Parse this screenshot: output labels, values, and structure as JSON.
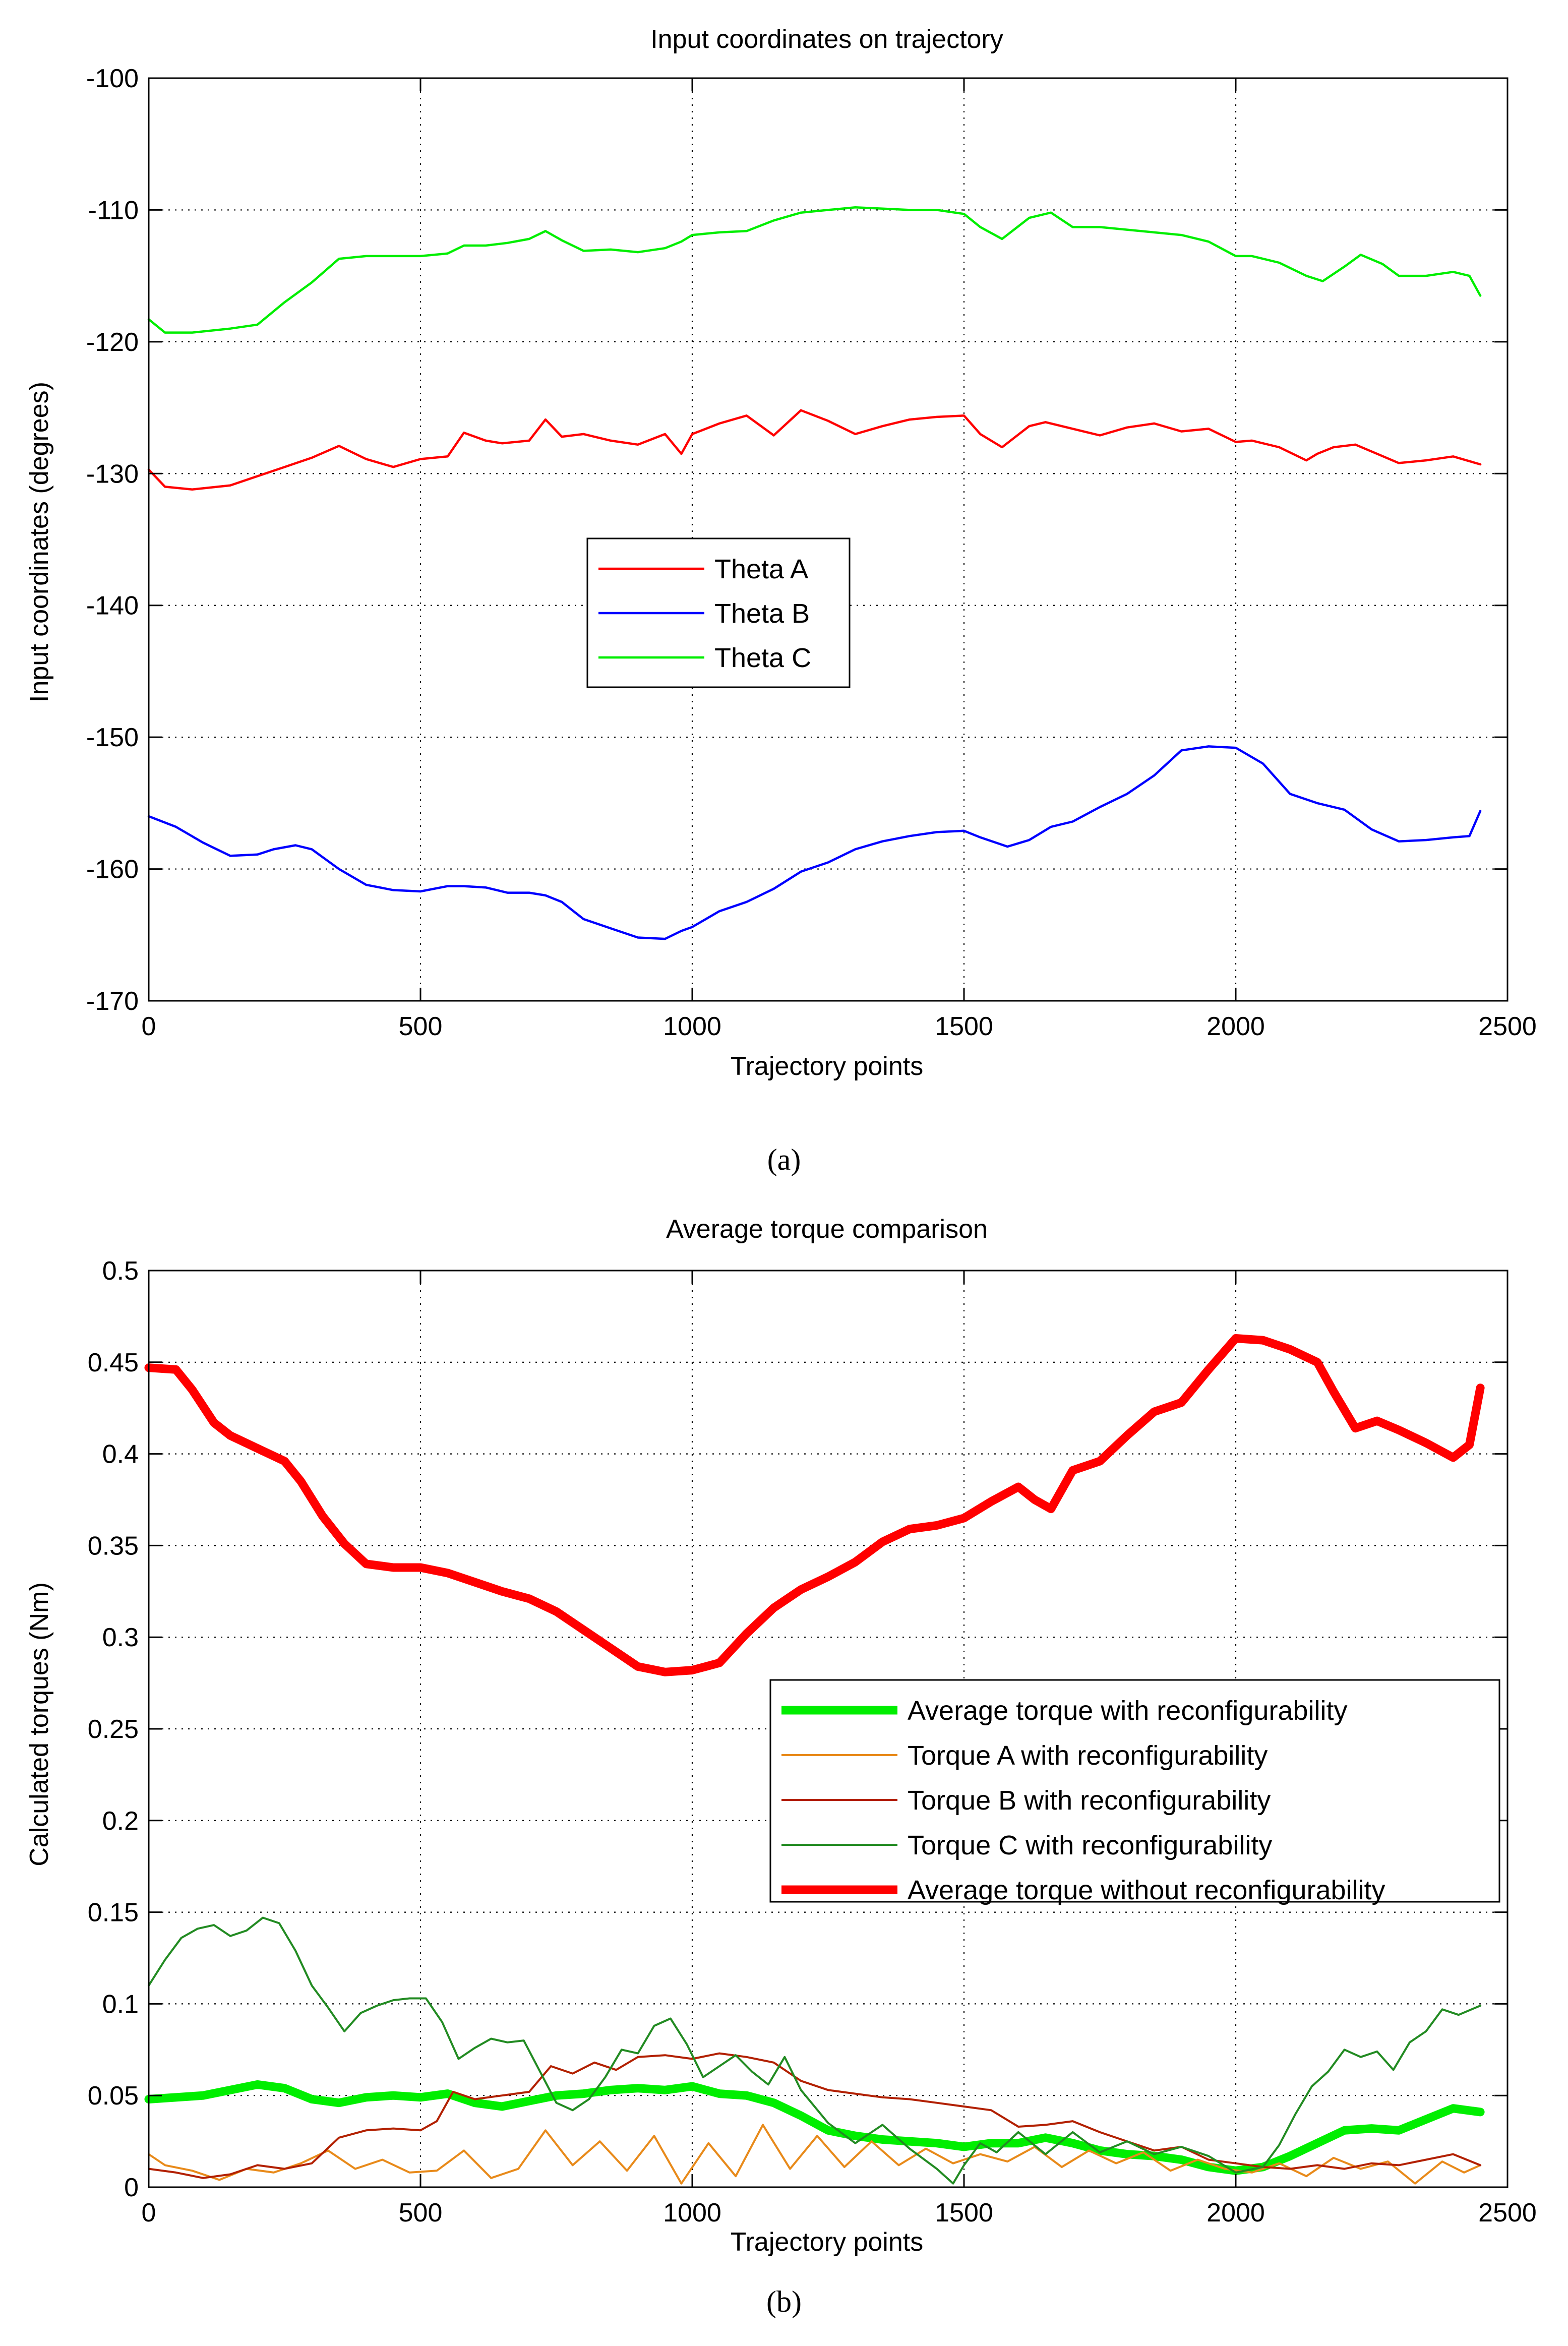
{
  "figure": {
    "label_a": "(a)",
    "label_b": "(b)"
  },
  "chart_data": [
    {
      "type": "line",
      "title": "Input coordinates on trajectory",
      "xlabel": "Trajectory points",
      "ylabel": "Input coordinates (degrees)",
      "xlim": [
        0,
        2500
      ],
      "ylim": [
        -170,
        -100
      ],
      "xticks": [
        0,
        500,
        1000,
        1500,
        2000,
        2500
      ],
      "yticks": [
        -170,
        -160,
        -150,
        -140,
        -130,
        -120,
        -110,
        -100
      ],
      "grid": true,
      "legend_position": "center",
      "series": [
        {
          "name": "Theta A",
          "color": "#ff0000",
          "width": "normal",
          "x": [
            0,
            30,
            80,
            150,
            200,
            250,
            300,
            350,
            400,
            450,
            500,
            550,
            580,
            620,
            650,
            700,
            730,
            760,
            800,
            850,
            900,
            950,
            980,
            1000,
            1050,
            1100,
            1150,
            1200,
            1250,
            1300,
            1350,
            1400,
            1450,
            1500,
            1530,
            1570,
            1620,
            1650,
            1700,
            1750,
            1800,
            1850,
            1900,
            1950,
            2000,
            2030,
            2080,
            2130,
            2150,
            2180,
            2220,
            2260,
            2300,
            2350,
            2400,
            2450
          ],
          "y": [
            -129.7,
            -131.0,
            -131.2,
            -130.9,
            -130.2,
            -129.5,
            -128.8,
            -127.9,
            -128.9,
            -129.5,
            -128.9,
            -128.7,
            -126.9,
            -127.5,
            -127.7,
            -127.5,
            -125.9,
            -127.2,
            -127.0,
            -127.5,
            -127.8,
            -127.0,
            -128.5,
            -127.0,
            -126.2,
            -125.6,
            -127.1,
            -125.2,
            -126.0,
            -127.0,
            -126.4,
            -125.9,
            -125.7,
            -125.6,
            -127.0,
            -128.0,
            -126.4,
            -126.1,
            -126.6,
            -127.1,
            -126.5,
            -126.2,
            -126.8,
            -126.6,
            -127.6,
            -127.5,
            -128.0,
            -129.0,
            -128.5,
            -128.0,
            -127.8,
            -128.5,
            -129.2,
            -129.0,
            -128.7,
            -129.3
          ]
        },
        {
          "name": "Theta B",
          "color": "#0000ff",
          "width": "normal",
          "x": [
            0,
            50,
            100,
            150,
            200,
            230,
            270,
            300,
            350,
            400,
            450,
            500,
            550,
            580,
            620,
            660,
            700,
            730,
            760,
            800,
            850,
            900,
            950,
            980,
            1000,
            1050,
            1100,
            1150,
            1200,
            1250,
            1300,
            1350,
            1400,
            1450,
            1500,
            1530,
            1580,
            1620,
            1660,
            1700,
            1750,
            1800,
            1850,
            1900,
            1950,
            2000,
            2050,
            2100,
            2150,
            2200,
            2250,
            2300,
            2350,
            2400,
            2430,
            2450
          ],
          "y": [
            -156.0,
            -156.8,
            -158.0,
            -159.0,
            -158.9,
            -158.5,
            -158.2,
            -158.5,
            -160.0,
            -161.2,
            -161.6,
            -161.7,
            -161.3,
            -161.3,
            -161.4,
            -161.8,
            -161.8,
            -162.0,
            -162.5,
            -163.8,
            -164.5,
            -165.2,
            -165.3,
            -164.7,
            -164.4,
            -163.2,
            -162.5,
            -161.5,
            -160.2,
            -159.5,
            -158.5,
            -157.9,
            -157.5,
            -157.2,
            -157.1,
            -157.6,
            -158.3,
            -157.8,
            -156.8,
            -156.4,
            -155.3,
            -154.3,
            -152.9,
            -151.0,
            -150.7,
            -150.8,
            -152.0,
            -154.3,
            -155.0,
            -155.5,
            -157.0,
            -157.9,
            -157.8,
            -157.6,
            -157.5,
            -155.6
          ]
        },
        {
          "name": "Theta C",
          "color": "#00ee00",
          "width": "normal",
          "x": [
            0,
            30,
            80,
            150,
            200,
            250,
            300,
            350,
            400,
            450,
            500,
            550,
            580,
            620,
            660,
            700,
            730,
            760,
            800,
            850,
            900,
            950,
            980,
            1000,
            1050,
            1100,
            1150,
            1200,
            1250,
            1300,
            1350,
            1400,
            1450,
            1500,
            1530,
            1570,
            1620,
            1660,
            1700,
            1750,
            1800,
            1850,
            1900,
            1950,
            2000,
            2030,
            2080,
            2130,
            2160,
            2200,
            2230,
            2270,
            2300,
            2350,
            2400,
            2430,
            2450
          ],
          "y": [
            -118.3,
            -119.3,
            -119.3,
            -119.0,
            -118.7,
            -117.0,
            -115.5,
            -113.7,
            -113.5,
            -113.5,
            -113.5,
            -113.3,
            -112.7,
            -112.7,
            -112.5,
            -112.2,
            -111.6,
            -112.3,
            -113.1,
            -113.0,
            -113.2,
            -112.9,
            -112.4,
            -111.9,
            -111.7,
            -111.6,
            -110.8,
            -110.2,
            -110.0,
            -109.8,
            -109.9,
            -110.0,
            -110.0,
            -110.3,
            -111.3,
            -112.2,
            -110.6,
            -110.2,
            -111.3,
            -111.3,
            -111.5,
            -111.7,
            -111.9,
            -112.4,
            -113.5,
            -113.5,
            -114.0,
            -115.0,
            -115.4,
            -114.3,
            -113.4,
            -114.1,
            -115.0,
            -115.0,
            -114.7,
            -115.0,
            -116.5
          ]
        }
      ]
    },
    {
      "type": "line",
      "title": "Average torque comparison",
      "xlabel": "Trajectory points",
      "ylabel": "Calculated torques (Nm)",
      "xlim": [
        0,
        2500
      ],
      "ylim": [
        0,
        0.5
      ],
      "xticks": [
        0,
        500,
        1000,
        1500,
        2000,
        2500
      ],
      "yticks": [
        0,
        0.05,
        0.1,
        0.15,
        0.2,
        0.25,
        0.3,
        0.35,
        0.4,
        0.45,
        0.5
      ],
      "grid": true,
      "legend_position": "right",
      "series": [
        {
          "name": "Average torque with reconfigurability",
          "color": "#00ee00",
          "width": "thick",
          "x": [
            0,
            100,
            150,
            200,
            250,
            300,
            350,
            400,
            450,
            500,
            550,
            600,
            650,
            700,
            750,
            800,
            850,
            900,
            950,
            1000,
            1050,
            1100,
            1150,
            1200,
            1250,
            1300,
            1350,
            1400,
            1450,
            1500,
            1550,
            1600,
            1650,
            1700,
            1750,
            1800,
            1850,
            1900,
            1950,
            2000,
            2050,
            2100,
            2150,
            2200,
            2250,
            2300,
            2350,
            2400,
            2450
          ],
          "y": [
            0.048,
            0.05,
            0.053,
            0.056,
            0.054,
            0.048,
            0.046,
            0.049,
            0.05,
            0.049,
            0.051,
            0.046,
            0.044,
            0.047,
            0.05,
            0.051,
            0.053,
            0.054,
            0.053,
            0.055,
            0.051,
            0.05,
            0.046,
            0.039,
            0.031,
            0.028,
            0.026,
            0.025,
            0.024,
            0.022,
            0.024,
            0.024,
            0.027,
            0.024,
            0.02,
            0.018,
            0.017,
            0.015,
            0.011,
            0.009,
            0.011,
            0.017,
            0.024,
            0.031,
            0.032,
            0.031,
            0.037,
            0.043,
            0.041
          ]
        },
        {
          "name": "Torque A with reconfigurability",
          "color": "#e88a1a",
          "width": "thin",
          "x": [
            0,
            30,
            80,
            130,
            180,
            230,
            280,
            330,
            380,
            430,
            480,
            530,
            580,
            630,
            680,
            730,
            780,
            830,
            880,
            930,
            980,
            1030,
            1080,
            1130,
            1180,
            1230,
            1280,
            1330,
            1380,
            1430,
            1480,
            1530,
            1580,
            1630,
            1680,
            1730,
            1780,
            1830,
            1880,
            1930,
            1980,
            2030,
            2080,
            2130,
            2180,
            2230,
            2280,
            2330,
            2380,
            2420,
            2450
          ],
          "y": [
            0.018,
            0.012,
            0.009,
            0.004,
            0.01,
            0.008,
            0.013,
            0.02,
            0.01,
            0.015,
            0.008,
            0.009,
            0.02,
            0.005,
            0.01,
            0.031,
            0.012,
            0.025,
            0.009,
            0.028,
            0.002,
            0.024,
            0.006,
            0.034,
            0.01,
            0.028,
            0.011,
            0.025,
            0.012,
            0.021,
            0.013,
            0.018,
            0.014,
            0.022,
            0.011,
            0.02,
            0.013,
            0.019,
            0.009,
            0.015,
            0.01,
            0.008,
            0.013,
            0.006,
            0.016,
            0.01,
            0.014,
            0.002,
            0.014,
            0.008,
            0.012
          ]
        },
        {
          "name": "Torque B with reconfigurability",
          "color": "#b22000",
          "width": "thin",
          "x": [
            0,
            50,
            100,
            150,
            200,
            250,
            300,
            350,
            400,
            450,
            500,
            530,
            560,
            600,
            650,
            700,
            740,
            780,
            820,
            860,
            900,
            950,
            1000,
            1050,
            1100,
            1150,
            1200,
            1250,
            1300,
            1350,
            1400,
            1450,
            1500,
            1550,
            1600,
            1650,
            1700,
            1750,
            1800,
            1850,
            1900,
            1950,
            2000,
            2050,
            2100,
            2150,
            2200,
            2250,
            2300,
            2350,
            2400,
            2450
          ],
          "y": [
            0.01,
            0.008,
            0.005,
            0.007,
            0.012,
            0.01,
            0.013,
            0.027,
            0.031,
            0.032,
            0.031,
            0.036,
            0.052,
            0.048,
            0.05,
            0.052,
            0.066,
            0.062,
            0.068,
            0.064,
            0.071,
            0.072,
            0.07,
            0.073,
            0.071,
            0.068,
            0.058,
            0.053,
            0.051,
            0.049,
            0.048,
            0.046,
            0.044,
            0.042,
            0.033,
            0.034,
            0.036,
            0.03,
            0.025,
            0.02,
            0.022,
            0.015,
            0.013,
            0.011,
            0.01,
            0.012,
            0.01,
            0.013,
            0.012,
            0.015,
            0.018,
            0.012
          ]
        },
        {
          "name": "Torque C with reconfigurability",
          "color": "#228b22",
          "width": "thin",
          "x": [
            0,
            30,
            60,
            90,
            120,
            150,
            180,
            210,
            240,
            270,
            300,
            330,
            360,
            390,
            420,
            450,
            480,
            510,
            540,
            570,
            600,
            630,
            660,
            690,
            720,
            750,
            780,
            810,
            840,
            870,
            900,
            930,
            960,
            990,
            1020,
            1050,
            1080,
            1110,
            1140,
            1170,
            1200,
            1250,
            1300,
            1350,
            1400,
            1450,
            1480,
            1500,
            1530,
            1560,
            1600,
            1650,
            1700,
            1750,
            1800,
            1850,
            1900,
            1950,
            2000,
            2050,
            2080,
            2110,
            2140,
            2170,
            2200,
            2230,
            2260,
            2290,
            2320,
            2350,
            2380,
            2410,
            2450
          ],
          "y": [
            0.11,
            0.124,
            0.136,
            0.141,
            0.143,
            0.137,
            0.14,
            0.147,
            0.144,
            0.129,
            0.11,
            0.098,
            0.085,
            0.095,
            0.099,
            0.102,
            0.103,
            0.103,
            0.09,
            0.07,
            0.076,
            0.081,
            0.079,
            0.08,
            0.063,
            0.046,
            0.042,
            0.048,
            0.06,
            0.075,
            0.073,
            0.088,
            0.092,
            0.078,
            0.06,
            0.066,
            0.072,
            0.063,
            0.056,
            0.071,
            0.053,
            0.035,
            0.024,
            0.034,
            0.021,
            0.01,
            0.002,
            0.012,
            0.024,
            0.019,
            0.03,
            0.018,
            0.03,
            0.019,
            0.025,
            0.018,
            0.022,
            0.017,
            0.008,
            0.011,
            0.023,
            0.04,
            0.055,
            0.063,
            0.075,
            0.071,
            0.074,
            0.064,
            0.079,
            0.085,
            0.097,
            0.094,
            0.099
          ]
        },
        {
          "name": "Average torque without reconfigurability",
          "color": "#ff0000",
          "width": "thick",
          "x": [
            0,
            50,
            80,
            120,
            150,
            200,
            250,
            280,
            320,
            360,
            400,
            450,
            500,
            550,
            600,
            650,
            700,
            750,
            800,
            850,
            900,
            950,
            1000,
            1050,
            1100,
            1150,
            1200,
            1250,
            1300,
            1350,
            1400,
            1450,
            1500,
            1550,
            1600,
            1630,
            1660,
            1700,
            1750,
            1800,
            1850,
            1900,
            1950,
            2000,
            2050,
            2100,
            2150,
            2180,
            2220,
            2260,
            2300,
            2350,
            2400,
            2430,
            2450
          ],
          "y": [
            0.447,
            0.446,
            0.435,
            0.417,
            0.41,
            0.403,
            0.396,
            0.385,
            0.366,
            0.351,
            0.34,
            0.338,
            0.338,
            0.335,
            0.33,
            0.325,
            0.321,
            0.314,
            0.304,
            0.294,
            0.284,
            0.281,
            0.282,
            0.286,
            0.302,
            0.316,
            0.326,
            0.333,
            0.341,
            0.352,
            0.359,
            0.361,
            0.365,
            0.374,
            0.382,
            0.375,
            0.37,
            0.391,
            0.396,
            0.41,
            0.423,
            0.428,
            0.446,
            0.463,
            0.462,
            0.457,
            0.45,
            0.434,
            0.414,
            0.418,
            0.413,
            0.406,
            0.398,
            0.405,
            0.436
          ]
        }
      ]
    }
  ]
}
